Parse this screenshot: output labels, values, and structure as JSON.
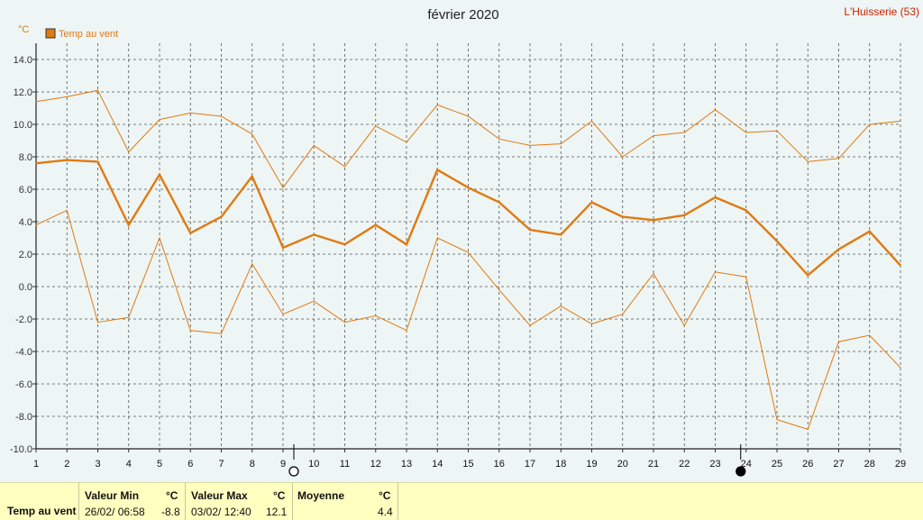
{
  "page": {
    "title": "février 2020",
    "location": "L'Huisserie (53)",
    "unit": "°C"
  },
  "legend": [
    {
      "label": "Temp au vent",
      "color": "#e07a10"
    }
  ],
  "moon": {
    "full_day": 9,
    "new_day": 24
  },
  "chart_data": {
    "type": "line",
    "title": "février 2020",
    "xlabel": "",
    "ylabel": "°C",
    "x": [
      1,
      2,
      3,
      4,
      5,
      6,
      7,
      8,
      9,
      10,
      11,
      12,
      13,
      14,
      15,
      16,
      17,
      18,
      19,
      20,
      21,
      22,
      23,
      24,
      25,
      26,
      27,
      28,
      29
    ],
    "ylim": [
      -10,
      15
    ],
    "yticks": [
      "-10.0",
      "-8.0",
      "-6.0",
      "-4.0",
      "-2.0",
      "0.0",
      "2.0",
      "4.0",
      "6.0",
      "8.0",
      "10.0",
      "12.0",
      "14.0"
    ],
    "grid": true,
    "legend_position": "top-left",
    "series": [
      {
        "name": "Temp au vent",
        "role": "mean",
        "values": [
          7.6,
          7.8,
          7.7,
          3.8,
          6.9,
          3.3,
          4.3,
          6.8,
          2.4,
          3.2,
          2.6,
          3.8,
          2.6,
          7.2,
          6.1,
          5.2,
          3.5,
          3.2,
          5.2,
          4.3,
          4.1,
          4.4,
          5.5,
          4.7,
          2.8,
          0.7,
          2.3,
          3.4,
          1.3
        ]
      },
      {
        "role": "max",
        "values": [
          11.4,
          11.7,
          12.1,
          8.3,
          10.3,
          10.7,
          10.5,
          9.4,
          6.1,
          8.7,
          7.4,
          9.9,
          8.9,
          11.2,
          10.5,
          9.1,
          8.7,
          8.8,
          10.2,
          8.0,
          9.3,
          9.5,
          10.9,
          9.5,
          9.6,
          7.7,
          7.9,
          10.0,
          10.2
        ]
      },
      {
        "role": "min",
        "values": [
          3.8,
          4.7,
          -2.2,
          -1.9,
          3.0,
          -2.7,
          -2.9,
          1.4,
          -1.7,
          -0.9,
          -2.2,
          -1.8,
          -2.7,
          3.0,
          2.1,
          -0.2,
          -2.4,
          -1.2,
          -2.3,
          -1.7,
          0.8,
          -2.4,
          0.9,
          0.6,
          -8.2,
          -8.8,
          -3.4,
          -3.0,
          -5.0
        ]
      }
    ]
  },
  "stats": {
    "row_label": "Temp au vent",
    "min": {
      "header": "Valeur Min",
      "unit": "°C",
      "when": "26/02/  06:58",
      "value": "-8.8"
    },
    "max": {
      "header": "Valeur Max",
      "unit": "°C",
      "when": "03/02/  12:40",
      "value": "12.1"
    },
    "avg": {
      "header": "Moyenne",
      "unit": "°C",
      "value": "4.4"
    }
  }
}
